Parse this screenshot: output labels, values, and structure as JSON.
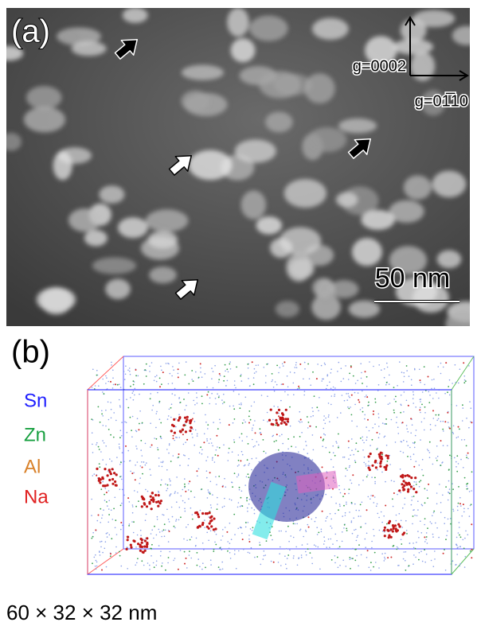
{
  "panel_a": {
    "label": "(a)",
    "g_vertical": "g=0002",
    "g_horizontal": "g=01̅10",
    "scale_bar": "50 nm"
  },
  "panel_b": {
    "label": "(b)",
    "legend": [
      "Sn",
      "Zn",
      "Al",
      "Na"
    ],
    "dimensions": "60 × 32 × 32 nm"
  }
}
